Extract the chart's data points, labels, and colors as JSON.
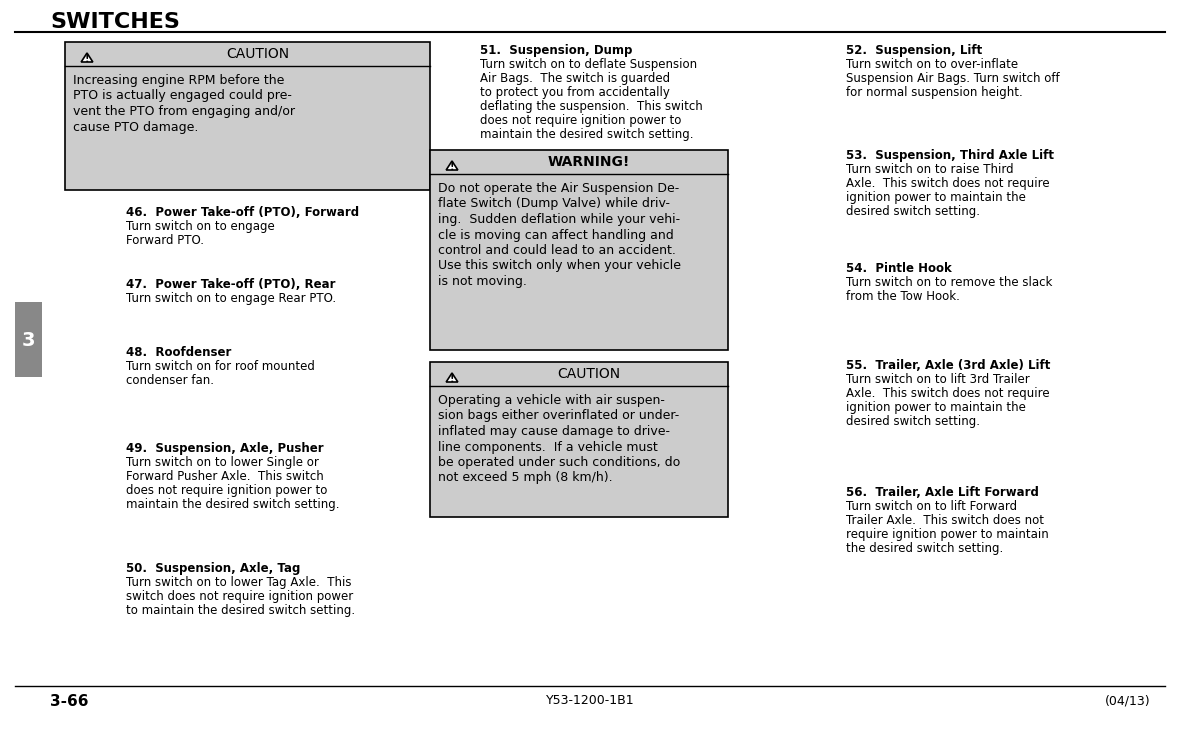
{
  "title": "SWITCHES",
  "page_num": "3-66",
  "doc_ref": "Y53-1200-1B1",
  "doc_date": "(04/13)",
  "chapter_num": "3",
  "bg_color": "#ffffff",
  "caution_bg": "#cccccc",
  "warning_bg": "#cccccc",
  "caution_header": "CAUTION",
  "warning_header": "WARNING!",
  "col1_caution_body": [
    "Increasing engine RPM before the",
    "PTO is actually engaged could pre-",
    "vent the PTO from engaging and/or",
    "cause PTO damage."
  ],
  "warning_body": [
    "Do not operate the Air Suspension De-",
    "flate Switch (Dump Valve) while driv-",
    "ing.  Sudden deflation while your vehi-",
    "cle is moving can affect handling and",
    "control and could lead to an accident.",
    "Use this switch only when your vehicle",
    "is not moving."
  ],
  "caution2_body": [
    "Operating a vehicle with air suspen-",
    "sion bags either overinflated or under-",
    "inflated may cause damage to drive-",
    "line components.  If a vehicle must",
    "be operated under such conditions, do",
    "not exceed 5 mph (8 km/h)."
  ],
  "items_col1": [
    {
      "num": "46.",
      "title": "Power Take-off (PTO), Forward",
      "lines": [
        "Turn switch on to engage",
        "Forward PTO."
      ]
    },
    {
      "num": "47.",
      "title": "Power Take-off (PTO), Rear",
      "lines": [
        "Turn switch on to engage Rear PTO."
      ]
    },
    {
      "num": "48.",
      "title": "Roofdenser",
      "lines": [
        "Turn switch on for roof mounted",
        "condenser fan."
      ]
    },
    {
      "num": "49.",
      "title": "Suspension, Axle, Pusher",
      "lines": [
        "Turn switch on to lower Single or",
        "Forward Pusher Axle.  This switch",
        "does not require ignition power to",
        "maintain the desired switch setting."
      ]
    },
    {
      "num": "50.",
      "title": "Suspension, Axle, Tag",
      "lines": [
        "Turn switch on to lower Tag Axle.  This",
        "switch does not require ignition power",
        "to maintain the desired switch setting."
      ]
    }
  ],
  "item51": {
    "num": "51.",
    "title": "Suspension, Dump",
    "lines": [
      "Turn switch on to deflate Suspension",
      "Air Bags.  The switch is guarded",
      "to protect you from accidentally",
      "deflating the suspension.  This switch",
      "does not require ignition power to",
      "maintain the desired switch setting."
    ]
  },
  "items_col3": [
    {
      "num": "52.",
      "title": "Suspension, Lift",
      "lines": [
        "Turn switch on to over-inflate",
        "Suspension Air Bags. Turn switch off",
        "for normal suspension height."
      ]
    },
    {
      "num": "53.",
      "title": "Suspension, Third Axle Lift",
      "lines": [
        "Turn switch on to raise Third",
        "Axle.  This switch does not require",
        "ignition power to maintain the",
        "desired switch setting."
      ]
    },
    {
      "num": "54.",
      "title": "Pintle Hook",
      "lines": [
        "Turn switch on to remove the slack",
        "from the Tow Hook."
      ]
    },
    {
      "num": "55.",
      "title": "Trailer, Axle (3rd Axle) Lift",
      "lines": [
        "Turn switch on to lift 3rd Trailer",
        "Axle.  This switch does not require",
        "ignition power to maintain the",
        "desired switch setting."
      ]
    },
    {
      "num": "56.",
      "title": "Trailer, Axle Lift Forward",
      "lines": [
        "Turn switch on to lift Forward",
        "Trailer Axle.  This switch does not",
        "require ignition power to maintain",
        "the desired switch setting."
      ]
    }
  ]
}
